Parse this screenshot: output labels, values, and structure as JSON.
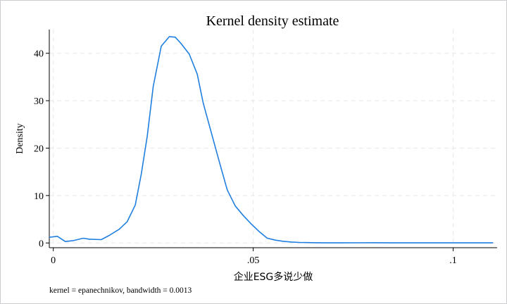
{
  "chart_data": {
    "type": "line",
    "title": "Kernel density estimate",
    "xlabel": "企业ESG多说少做",
    "ylabel": "Density",
    "note": "kernel = epanechnikov, bandwidth = 0.0013",
    "xlim": [
      -0.001,
      0.111
    ],
    "ylim": [
      -1,
      45
    ],
    "x_ticks": [
      0,
      0.05,
      0.1
    ],
    "x_tick_labels": [
      "0",
      ".05",
      ".1"
    ],
    "y_ticks": [
      0,
      10,
      20,
      30,
      40
    ],
    "y_tick_labels": [
      "0",
      "10",
      "20",
      "30",
      "40"
    ],
    "grid": true,
    "line_color": "#1f7fe0",
    "series": [
      {
        "x": [
          -0.001,
          0.001,
          0.003,
          0.005,
          0.0075,
          0.009,
          0.012,
          0.014,
          0.0165,
          0.0185,
          0.0205,
          0.022,
          0.0235,
          0.025,
          0.027,
          0.029,
          0.0305,
          0.032,
          0.034,
          0.036,
          0.0375,
          0.0395,
          0.0415,
          0.0435,
          0.0455,
          0.0475,
          0.0495,
          0.0515,
          0.0535,
          0.0555,
          0.0575,
          0.0595,
          0.0615,
          0.0635,
          0.0655,
          0.068,
          0.072,
          0.08,
          0.085,
          0.095,
          0.104,
          0.11
        ],
        "y": [
          1.2,
          1.4,
          0.3,
          0.5,
          1.0,
          0.8,
          0.7,
          1.6,
          2.9,
          4.5,
          8.0,
          14.5,
          22.5,
          33.0,
          41.5,
          43.5,
          43.4,
          42.0,
          39.8,
          35.6,
          29.5,
          23.3,
          17.2,
          11.2,
          7.8,
          5.8,
          4.0,
          2.4,
          1.0,
          0.6,
          0.35,
          0.2,
          0.12,
          0.08,
          0.05,
          0.03,
          0.02,
          0.05,
          0.03,
          0.02,
          0.02,
          0.02
        ]
      }
    ]
  }
}
